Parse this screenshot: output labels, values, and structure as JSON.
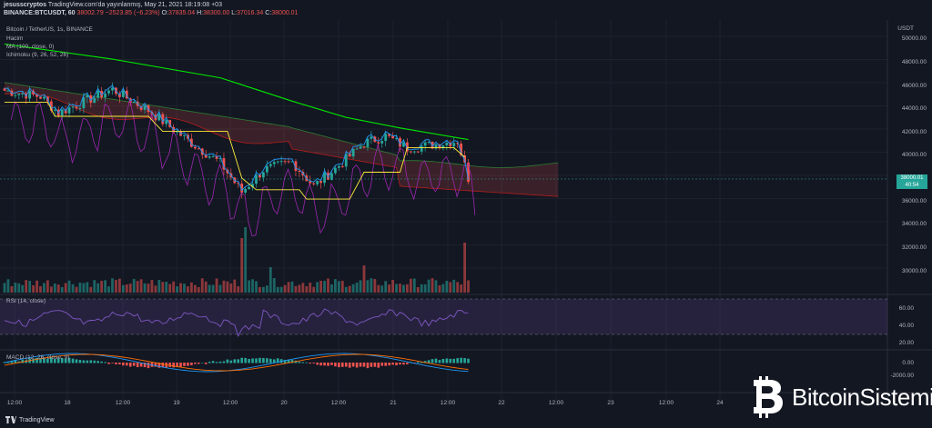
{
  "header": {
    "author": "jesusscryptos",
    "published": "TradingView.com'da yayınlanmış, May 21, 2021 18:19:08 +03",
    "symbol": "BINANCE:BTCUSDT, 60",
    "last": "38002.79",
    "change": "−2523.85 (−6.23%)",
    "o_label": "O:",
    "o_value": "37835.04",
    "h_label": "H:",
    "h_value": "38300.00",
    "l_label": "L:",
    "l_value": "37016.34",
    "c_label": "C:",
    "c_value": "38000.01"
  },
  "legends": {
    "main": "Bitcoin / TetherUS, 1s, BINANCE",
    "volume": "Hacim",
    "ma": "MA (100, close, 0)",
    "ichimoku": "Ichimoku (9, 26, 52, 26)",
    "rsi": "RSI (14, close)",
    "macd": "MACD (12, 26, close, 9)"
  },
  "price_axis": {
    "currency": "USDT",
    "ticks": [
      "50000.00",
      "48000.00",
      "46000.00",
      "44000.00",
      "42000.00",
      "40000.00",
      "36000.00",
      "34000.00",
      "32000.00",
      "30000.00"
    ],
    "last_price": "38000.01",
    "countdown": "40:54"
  },
  "rsi_axis": {
    "ticks": [
      "60.00",
      "40.00",
      "20.00"
    ]
  },
  "macd_axis": {
    "ticks": [
      "0.00",
      "-2000.00"
    ]
  },
  "time_axis": {
    "labels": [
      "12:00",
      "18",
      "12:00",
      "19",
      "12:00",
      "20",
      "12:00",
      "21",
      "12:00",
      "22",
      "12:00",
      "23",
      "12:00",
      "24"
    ]
  },
  "footer": {
    "tradingview": "TradingView"
  },
  "watermark": {
    "brand": "BitcoinSistemi"
  },
  "colors": {
    "bg": "#131722",
    "up": "#26a69a",
    "down": "#ef5350",
    "ma": "#00e600",
    "tenkan": "#2196f3",
    "kijun": "#ffeb3b",
    "chikou": "#9c27b0",
    "rsi": "#7e57c2"
  }
}
